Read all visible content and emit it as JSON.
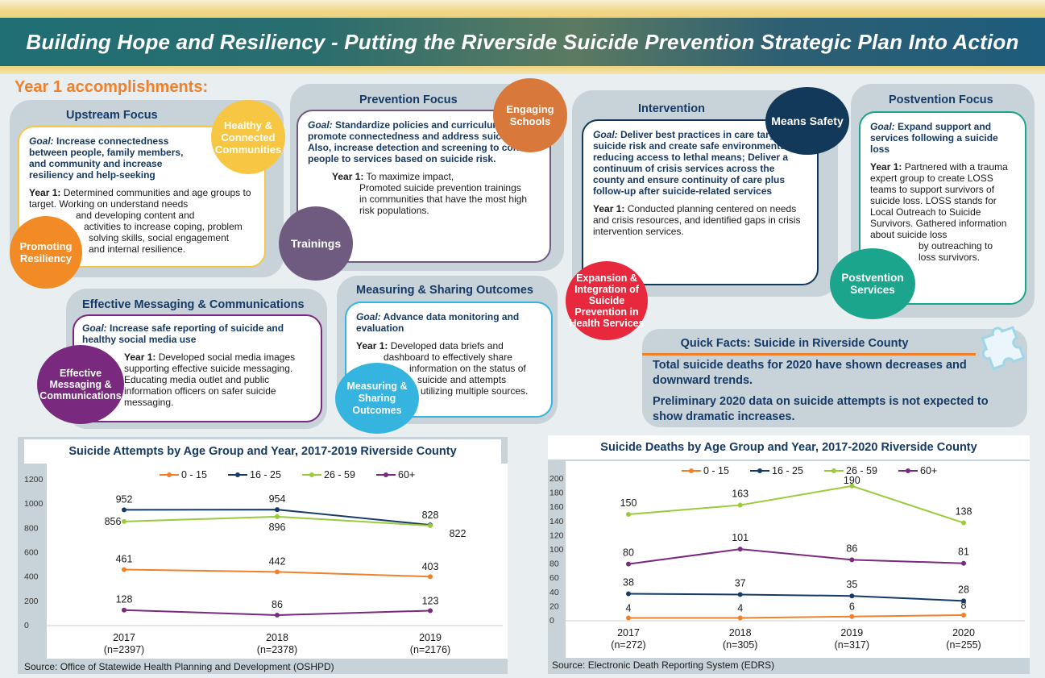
{
  "header": {
    "title": "Building Hope and Resiliency - Putting the Riverside Suicide Prevention Strategic Plan Into Action"
  },
  "section_label": "Year 1 accomplishments:",
  "upstream": {
    "title": "Upstream Focus",
    "goal_label": "Goal:",
    "goal": "Increase connectedness between  people, family members, and community and increase resiliency and help-seeking",
    "year_label": "Year 1:",
    "year_lines": [
      "Determined communities and age groups to target.  Working on understand needs",
      "and developing content and",
      "activities to increase coping, problem",
      "solving skills, social engagement",
      "and internal resilience."
    ],
    "circle_healthy": "Healthy & Connected Communities",
    "circle_resiliency": "Promoting Resiliency"
  },
  "prevention": {
    "title": "Prevention Focus",
    "goal_label": "Goal:",
    "goal": "Standardize policies and curriculum to promote connectedness and address suicide risk. Also, increase detection and screening to connect people to services based on suicide risk.",
    "year_label": "Year 1:",
    "year_lines": [
      "To maximize impact,",
      "Promoted suicide prevention trainings",
      "in communities that have the most high",
      "risk populations."
    ],
    "circle_schools": "Engaging Schools",
    "circle_trainings": "Trainings"
  },
  "intervention": {
    "title": "Intervention",
    "goal_label": "Goal:",
    "goal": "Deliver best practices in care targeting suicide risk and create safe environments by reducing access to lethal means; Deliver a continuum of crisis services across the county and ensure continuity of care plus follow-up after suicide-related services",
    "year_label": "Year 1:",
    "year_text": "Conducted planning centered on needs and crisis resources, and identified gaps in crisis intervention services.",
    "circle_means": "Means Safety",
    "circle_expansion": "Expansion & Integration of Suicide Prevention in Health Services"
  },
  "postvention": {
    "title": "Postvention Focus",
    "goal_label": "Goal:",
    "goal": "Expand support and services following a suicide loss",
    "year_label": "Year 1:",
    "year_lines": [
      "Partnered with a trauma expert group to create LOSS teams to support survivors of suicide loss. LOSS stands for Local Outreach to Suicide Survivors. Gathered information about suicide loss",
      "by outreaching to",
      "loss survivors."
    ],
    "circle_services": "Postvention Services"
  },
  "messaging": {
    "title": "Effective Messaging & Communications",
    "goal_label": "Goal:",
    "goal": "Increase safe reporting of suicide and healthy social media use",
    "year_label": "Year 1:",
    "year_text": "Developed social media images supporting effective suicide messaging. Educating media outlet and public information officers on safer suicide messaging.",
    "circle": "Effective Messaging & Communications"
  },
  "measuring": {
    "title": "Measuring & Sharing Outcomes",
    "goal_label": "Goal:",
    "goal": "Advance data monitoring and evaluation",
    "year_label": "Year 1:",
    "year_lines": [
      "Developed data briefs and",
      "dashboard to effectively share",
      "information on the status of",
      "suicide and attempts",
      "utilizing multiple sources."
    ],
    "circle": "Measuring & Sharing Outcomes"
  },
  "quick_facts": {
    "title": "Quick Facts: Suicide in Riverside County",
    "fact1": "Total suicide deaths for 2020 have shown decreases and downward trends.",
    "fact2": "Preliminary 2020 data on suicide attempts is not expected to show dramatic increases."
  },
  "colors": {
    "orange": "#f0802a",
    "navy": "#163a66",
    "green": "#9bcb3c",
    "purple": "#7a2a7e",
    "yellow": "#f7c744",
    "dark_teal": "#12385a",
    "teal": "#1aa58c",
    "red": "#e8283c",
    "sky": "#35b4e0",
    "mauve": "#6f5b80",
    "brown_orange": "#d8783a"
  },
  "chart_data": [
    {
      "type": "line",
      "title": "Suicide Attempts by Age Group and Year, 2017-2019 Riverside County",
      "categories": [
        "2017",
        "2018",
        "2019"
      ],
      "category_sub": [
        "(n=2397)",
        "(n=2378)",
        "(n=2176)"
      ],
      "ylim": [
        0,
        1200
      ],
      "yticks": [
        "0",
        "200",
        "400",
        "600",
        "800",
        "1000",
        "1200"
      ],
      "legend_position": "top",
      "series": [
        {
          "name": "0 - 15",
          "color": "#f0802a",
          "values": [
            461,
            442,
            403
          ]
        },
        {
          "name": "16 - 25",
          "color": "#163a66",
          "values": [
            952,
            954,
            828
          ]
        },
        {
          "name": "26 - 59",
          "color": "#9bcb3c",
          "values": [
            856,
            896,
            822
          ]
        },
        {
          "name": "60+",
          "color": "#7a2a7e",
          "values": [
            128,
            86,
            123
          ]
        }
      ],
      "source": "Source: Office of Statewide Health Planning and Development (OSHPD)"
    },
    {
      "type": "line",
      "title": "Suicide Deaths by Age Group and Year, 2017-2020 Riverside County",
      "categories": [
        "2017",
        "2018",
        "2019",
        "2020"
      ],
      "category_sub": [
        "(n=272)",
        "(n=305)",
        "(n=317)",
        "(n=255)"
      ],
      "ylim": [
        0,
        200
      ],
      "yticks": [
        "0",
        "20",
        "40",
        "60",
        "80",
        "100",
        "120",
        "140",
        "160",
        "180",
        "200"
      ],
      "legend_position": "top",
      "series": [
        {
          "name": "0 - 15",
          "color": "#f0802a",
          "values": [
            4,
            4,
            6,
            8
          ]
        },
        {
          "name": "16 - 25",
          "color": "#163a66",
          "values": [
            38,
            37,
            35,
            28
          ]
        },
        {
          "name": "26 - 59",
          "color": "#9bcb3c",
          "values": [
            150,
            163,
            190,
            138
          ]
        },
        {
          "name": "60+",
          "color": "#7a2a7e",
          "values": [
            80,
            101,
            86,
            81
          ]
        }
      ],
      "source": "Source: Electronic Death Reporting System (EDRS)"
    }
  ]
}
